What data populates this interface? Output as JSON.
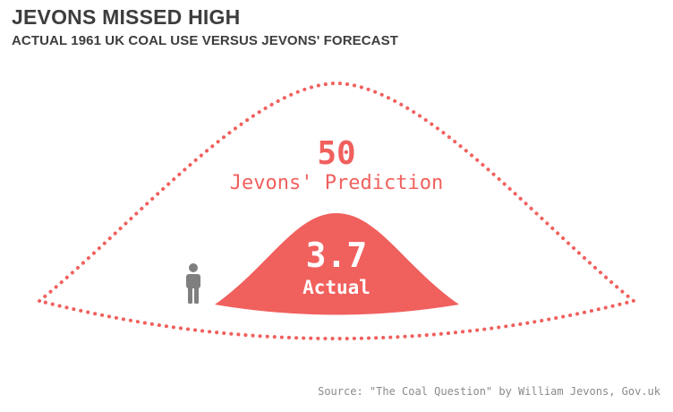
{
  "header": {
    "title": "JEVONS MISSED HIGH",
    "subtitle": "ACTUAL 1961 UK COAL USE VERSUS JEVONS' FORECAST"
  },
  "chart_data": {
    "type": "area",
    "categories": [
      "Jevons' Prediction",
      "Actual"
    ],
    "values": [
      50,
      3.7
    ],
    "value_labels": [
      "50",
      "3.7"
    ],
    "category_labels": [
      "Jevons' Prediction",
      "Actual"
    ],
    "styles": [
      "dotted-outline",
      "filled"
    ]
  },
  "colors": {
    "accent": "#f0605d",
    "title_text": "#3d3d3d",
    "source_text": "#8a8a8a",
    "person_icon": "#7f7f7f"
  },
  "icons": {
    "scale_reference": "person-icon"
  },
  "source": "Source: \"The Coal Question\" by William Jevons, Gov.uk"
}
